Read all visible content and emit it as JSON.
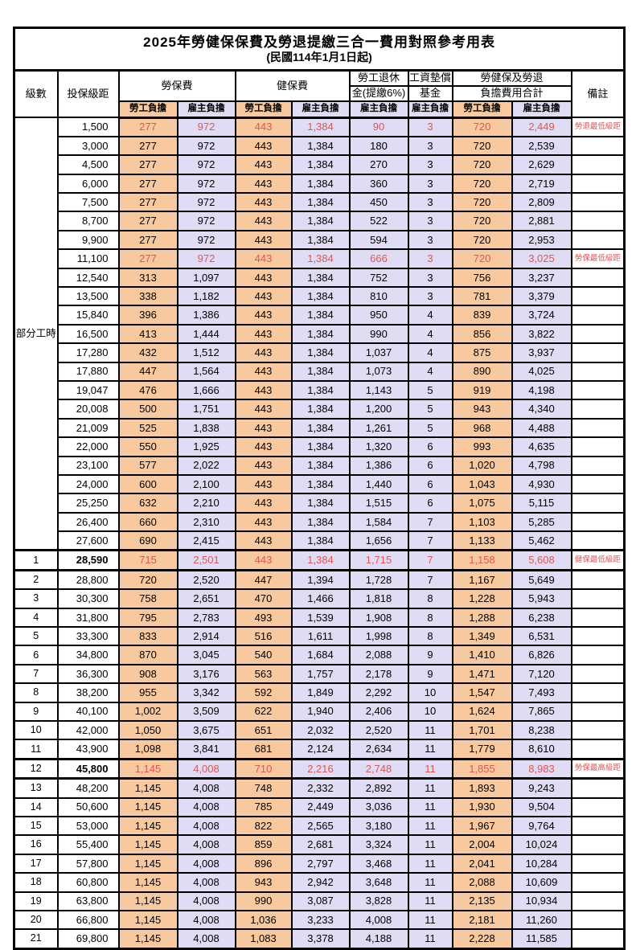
{
  "title": "2025年勞健保保費及勞退提繳三合一費用對照參考用表",
  "subtitle": "(民國114年1月1日起)",
  "colors": {
    "employee_bg": "#F8C99E",
    "employer_bg": "#DFDCF3",
    "highlight_red": "#E05555",
    "border": "#000000"
  },
  "header": {
    "level": "級數",
    "bracket": "投保級距",
    "labor_insurance": "勞保費",
    "health_insurance": "健保費",
    "pension_line1": "勞工退休",
    "pension_line2": "金(提繳6%)",
    "wage_fund_line1": "工資墊償",
    "wage_fund_line2": "基金",
    "total_line1": "勞健保及勞退",
    "total_line2": "負擔費用合計",
    "remark": "備註",
    "employee": "勞工負擔",
    "employer": "雇主負擔"
  },
  "part_time": {
    "label": "部分工時",
    "row_count": 23
  },
  "rows": [
    {
      "lv": "",
      "bracket": "1,500",
      "li_e": "277",
      "li_r": "972",
      "hi_e": "443",
      "hi_r": "1,384",
      "pen": "90",
      "wf": "3",
      "tot_e": "720",
      "tot_r": "2,449",
      "note": "勞退最低級距",
      "red": true,
      "heavy": false,
      "bold": false
    },
    {
      "lv": "",
      "bracket": "3,000",
      "li_e": "277",
      "li_r": "972",
      "hi_e": "443",
      "hi_r": "1,384",
      "pen": "180",
      "wf": "3",
      "tot_e": "720",
      "tot_r": "2,539",
      "note": "",
      "red": false,
      "heavy": false,
      "bold": false
    },
    {
      "lv": "",
      "bracket": "4,500",
      "li_e": "277",
      "li_r": "972",
      "hi_e": "443",
      "hi_r": "1,384",
      "pen": "270",
      "wf": "3",
      "tot_e": "720",
      "tot_r": "2,629",
      "note": "",
      "red": false,
      "heavy": false,
      "bold": false
    },
    {
      "lv": "",
      "bracket": "6,000",
      "li_e": "277",
      "li_r": "972",
      "hi_e": "443",
      "hi_r": "1,384",
      "pen": "360",
      "wf": "3",
      "tot_e": "720",
      "tot_r": "2,719",
      "note": "",
      "red": false,
      "heavy": false,
      "bold": false
    },
    {
      "lv": "",
      "bracket": "7,500",
      "li_e": "277",
      "li_r": "972",
      "hi_e": "443",
      "hi_r": "1,384",
      "pen": "450",
      "wf": "3",
      "tot_e": "720",
      "tot_r": "2,809",
      "note": "",
      "red": false,
      "heavy": false,
      "bold": false
    },
    {
      "lv": "",
      "bracket": "8,700",
      "li_e": "277",
      "li_r": "972",
      "hi_e": "443",
      "hi_r": "1,384",
      "pen": "522",
      "wf": "3",
      "tot_e": "720",
      "tot_r": "2,881",
      "note": "",
      "red": false,
      "heavy": false,
      "bold": false
    },
    {
      "lv": "",
      "bracket": "9,900",
      "li_e": "277",
      "li_r": "972",
      "hi_e": "443",
      "hi_r": "1,384",
      "pen": "594",
      "wf": "3",
      "tot_e": "720",
      "tot_r": "2,953",
      "note": "",
      "red": false,
      "heavy": false,
      "bold": false
    },
    {
      "lv": "",
      "bracket": "11,100",
      "li_e": "277",
      "li_r": "972",
      "hi_e": "443",
      "hi_r": "1,384",
      "pen": "666",
      "wf": "3",
      "tot_e": "720",
      "tot_r": "3,025",
      "note": "勞保最低級距",
      "red": true,
      "heavy": false,
      "bold": false
    },
    {
      "lv": "",
      "bracket": "12,540",
      "li_e": "313",
      "li_r": "1,097",
      "hi_e": "443",
      "hi_r": "1,384",
      "pen": "752",
      "wf": "3",
      "tot_e": "756",
      "tot_r": "3,237",
      "note": "",
      "red": false,
      "heavy": false,
      "bold": false
    },
    {
      "lv": "",
      "bracket": "13,500",
      "li_e": "338",
      "li_r": "1,182",
      "hi_e": "443",
      "hi_r": "1,384",
      "pen": "810",
      "wf": "3",
      "tot_e": "781",
      "tot_r": "3,379",
      "note": "",
      "red": false,
      "heavy": false,
      "bold": false
    },
    {
      "lv": "",
      "bracket": "15,840",
      "li_e": "396",
      "li_r": "1,386",
      "hi_e": "443",
      "hi_r": "1,384",
      "pen": "950",
      "wf": "4",
      "tot_e": "839",
      "tot_r": "3,724",
      "note": "",
      "red": false,
      "heavy": false,
      "bold": false
    },
    {
      "lv": "",
      "bracket": "16,500",
      "li_e": "413",
      "li_r": "1,444",
      "hi_e": "443",
      "hi_r": "1,384",
      "pen": "990",
      "wf": "4",
      "tot_e": "856",
      "tot_r": "3,822",
      "note": "",
      "red": false,
      "heavy": false,
      "bold": false
    },
    {
      "lv": "",
      "bracket": "17,280",
      "li_e": "432",
      "li_r": "1,512",
      "hi_e": "443",
      "hi_r": "1,384",
      "pen": "1,037",
      "wf": "4",
      "tot_e": "875",
      "tot_r": "3,937",
      "note": "",
      "red": false,
      "heavy": false,
      "bold": false
    },
    {
      "lv": "",
      "bracket": "17,880",
      "li_e": "447",
      "li_r": "1,564",
      "hi_e": "443",
      "hi_r": "1,384",
      "pen": "1,073",
      "wf": "4",
      "tot_e": "890",
      "tot_r": "4,025",
      "note": "",
      "red": false,
      "heavy": false,
      "bold": false
    },
    {
      "lv": "",
      "bracket": "19,047",
      "li_e": "476",
      "li_r": "1,666",
      "hi_e": "443",
      "hi_r": "1,384",
      "pen": "1,143",
      "wf": "5",
      "tot_e": "919",
      "tot_r": "4,198",
      "note": "",
      "red": false,
      "heavy": false,
      "bold": false
    },
    {
      "lv": "",
      "bracket": "20,008",
      "li_e": "500",
      "li_r": "1,751",
      "hi_e": "443",
      "hi_r": "1,384",
      "pen": "1,200",
      "wf": "5",
      "tot_e": "943",
      "tot_r": "4,340",
      "note": "",
      "red": false,
      "heavy": false,
      "bold": false
    },
    {
      "lv": "",
      "bracket": "21,009",
      "li_e": "525",
      "li_r": "1,838",
      "hi_e": "443",
      "hi_r": "1,384",
      "pen": "1,261",
      "wf": "5",
      "tot_e": "968",
      "tot_r": "4,488",
      "note": "",
      "red": false,
      "heavy": false,
      "bold": false
    },
    {
      "lv": "",
      "bracket": "22,000",
      "li_e": "550",
      "li_r": "1,925",
      "hi_e": "443",
      "hi_r": "1,384",
      "pen": "1,320",
      "wf": "6",
      "tot_e": "993",
      "tot_r": "4,635",
      "note": "",
      "red": false,
      "heavy": false,
      "bold": false
    },
    {
      "lv": "",
      "bracket": "23,100",
      "li_e": "577",
      "li_r": "2,022",
      "hi_e": "443",
      "hi_r": "1,384",
      "pen": "1,386",
      "wf": "6",
      "tot_e": "1,020",
      "tot_r": "4,798",
      "note": "",
      "red": false,
      "heavy": false,
      "bold": false
    },
    {
      "lv": "",
      "bracket": "24,000",
      "li_e": "600",
      "li_r": "2,100",
      "hi_e": "443",
      "hi_r": "1,384",
      "pen": "1,440",
      "wf": "6",
      "tot_e": "1,043",
      "tot_r": "4,930",
      "note": "",
      "red": false,
      "heavy": false,
      "bold": false
    },
    {
      "lv": "",
      "bracket": "25,250",
      "li_e": "632",
      "li_r": "2,210",
      "hi_e": "443",
      "hi_r": "1,384",
      "pen": "1,515",
      "wf": "6",
      "tot_e": "1,075",
      "tot_r": "5,115",
      "note": "",
      "red": false,
      "heavy": false,
      "bold": false
    },
    {
      "lv": "",
      "bracket": "26,400",
      "li_e": "660",
      "li_r": "2,310",
      "hi_e": "443",
      "hi_r": "1,384",
      "pen": "1,584",
      "wf": "7",
      "tot_e": "1,103",
      "tot_r": "5,285",
      "note": "",
      "red": false,
      "heavy": false,
      "bold": false
    },
    {
      "lv": "",
      "bracket": "27,600",
      "li_e": "690",
      "li_r": "2,415",
      "hi_e": "443",
      "hi_r": "1,384",
      "pen": "1,656",
      "wf": "7",
      "tot_e": "1,133",
      "tot_r": "5,462",
      "note": "",
      "red": false,
      "heavy": false,
      "bold": false
    },
    {
      "lv": "1",
      "bracket": "28,590",
      "li_e": "715",
      "li_r": "2,501",
      "hi_e": "443",
      "hi_r": "1,384",
      "pen": "1,715",
      "wf": "7",
      "tot_e": "1,158",
      "tot_r": "5,608",
      "note": "健保最低級距",
      "red": true,
      "heavy": true,
      "bold": true
    },
    {
      "lv": "2",
      "bracket": "28,800",
      "li_e": "720",
      "li_r": "2,520",
      "hi_e": "447",
      "hi_r": "1,394",
      "pen": "1,728",
      "wf": "7",
      "tot_e": "1,167",
      "tot_r": "5,649",
      "note": "",
      "red": false,
      "heavy": false,
      "bold": false
    },
    {
      "lv": "3",
      "bracket": "30,300",
      "li_e": "758",
      "li_r": "2,651",
      "hi_e": "470",
      "hi_r": "1,466",
      "pen": "1,818",
      "wf": "8",
      "tot_e": "1,228",
      "tot_r": "5,943",
      "note": "",
      "red": false,
      "heavy": false,
      "bold": false
    },
    {
      "lv": "4",
      "bracket": "31,800",
      "li_e": "795",
      "li_r": "2,783",
      "hi_e": "493",
      "hi_r": "1,539",
      "pen": "1,908",
      "wf": "8",
      "tot_e": "1,288",
      "tot_r": "6,238",
      "note": "",
      "red": false,
      "heavy": false,
      "bold": false
    },
    {
      "lv": "5",
      "bracket": "33,300",
      "li_e": "833",
      "li_r": "2,914",
      "hi_e": "516",
      "hi_r": "1,611",
      "pen": "1,998",
      "wf": "8",
      "tot_e": "1,349",
      "tot_r": "6,531",
      "note": "",
      "red": false,
      "heavy": false,
      "bold": false
    },
    {
      "lv": "6",
      "bracket": "34,800",
      "li_e": "870",
      "li_r": "3,045",
      "hi_e": "540",
      "hi_r": "1,684",
      "pen": "2,088",
      "wf": "9",
      "tot_e": "1,410",
      "tot_r": "6,826",
      "note": "",
      "red": false,
      "heavy": false,
      "bold": false
    },
    {
      "lv": "7",
      "bracket": "36,300",
      "li_e": "908",
      "li_r": "3,176",
      "hi_e": "563",
      "hi_r": "1,757",
      "pen": "2,178",
      "wf": "9",
      "tot_e": "1,471",
      "tot_r": "7,120",
      "note": "",
      "red": false,
      "heavy": false,
      "bold": false
    },
    {
      "lv": "8",
      "bracket": "38,200",
      "li_e": "955",
      "li_r": "3,342",
      "hi_e": "592",
      "hi_r": "1,849",
      "pen": "2,292",
      "wf": "10",
      "tot_e": "1,547",
      "tot_r": "7,493",
      "note": "",
      "red": false,
      "heavy": false,
      "bold": false
    },
    {
      "lv": "9",
      "bracket": "40,100",
      "li_e": "1,002",
      "li_r": "3,509",
      "hi_e": "622",
      "hi_r": "1,940",
      "pen": "2,406",
      "wf": "10",
      "tot_e": "1,624",
      "tot_r": "7,865",
      "note": "",
      "red": false,
      "heavy": false,
      "bold": false
    },
    {
      "lv": "10",
      "bracket": "42,000",
      "li_e": "1,050",
      "li_r": "3,675",
      "hi_e": "651",
      "hi_r": "2,032",
      "pen": "2,520",
      "wf": "11",
      "tot_e": "1,701",
      "tot_r": "8,238",
      "note": "",
      "red": false,
      "heavy": false,
      "bold": false
    },
    {
      "lv": "11",
      "bracket": "43,900",
      "li_e": "1,098",
      "li_r": "3,841",
      "hi_e": "681",
      "hi_r": "2,124",
      "pen": "2,634",
      "wf": "11",
      "tot_e": "1,779",
      "tot_r": "8,610",
      "note": "",
      "red": false,
      "heavy": false,
      "bold": false
    },
    {
      "lv": "12",
      "bracket": "45,800",
      "li_e": "1,145",
      "li_r": "4,008",
      "hi_e": "710",
      "hi_r": "2,216",
      "pen": "2,748",
      "wf": "11",
      "tot_e": "1,855",
      "tot_r": "8,983",
      "note": "勞保最高級距",
      "red": true,
      "heavy": true,
      "bold": true
    },
    {
      "lv": "13",
      "bracket": "48,200",
      "li_e": "1,145",
      "li_r": "4,008",
      "hi_e": "748",
      "hi_r": "2,332",
      "pen": "2,892",
      "wf": "11",
      "tot_e": "1,893",
      "tot_r": "9,243",
      "note": "",
      "red": false,
      "heavy": false,
      "bold": false
    },
    {
      "lv": "14",
      "bracket": "50,600",
      "li_e": "1,145",
      "li_r": "4,008",
      "hi_e": "785",
      "hi_r": "2,449",
      "pen": "3,036",
      "wf": "11",
      "tot_e": "1,930",
      "tot_r": "9,504",
      "note": "",
      "red": false,
      "heavy": false,
      "bold": false
    },
    {
      "lv": "15",
      "bracket": "53,000",
      "li_e": "1,145",
      "li_r": "4,008",
      "hi_e": "822",
      "hi_r": "2,565",
      "pen": "3,180",
      "wf": "11",
      "tot_e": "1,967",
      "tot_r": "9,764",
      "note": "",
      "red": false,
      "heavy": false,
      "bold": false
    },
    {
      "lv": "16",
      "bracket": "55,400",
      "li_e": "1,145",
      "li_r": "4,008",
      "hi_e": "859",
      "hi_r": "2,681",
      "pen": "3,324",
      "wf": "11",
      "tot_e": "2,004",
      "tot_r": "10,024",
      "note": "",
      "red": false,
      "heavy": false,
      "bold": false
    },
    {
      "lv": "17",
      "bracket": "57,800",
      "li_e": "1,145",
      "li_r": "4,008",
      "hi_e": "896",
      "hi_r": "2,797",
      "pen": "3,468",
      "wf": "11",
      "tot_e": "2,041",
      "tot_r": "10,284",
      "note": "",
      "red": false,
      "heavy": false,
      "bold": false
    },
    {
      "lv": "18",
      "bracket": "60,800",
      "li_e": "1,145",
      "li_r": "4,008",
      "hi_e": "943",
      "hi_r": "2,942",
      "pen": "3,648",
      "wf": "11",
      "tot_e": "2,088",
      "tot_r": "10,609",
      "note": "",
      "red": false,
      "heavy": false,
      "bold": false
    },
    {
      "lv": "19",
      "bracket": "63,800",
      "li_e": "1,145",
      "li_r": "4,008",
      "hi_e": "990",
      "hi_r": "3,087",
      "pen": "3,828",
      "wf": "11",
      "tot_e": "2,135",
      "tot_r": "10,934",
      "note": "",
      "red": false,
      "heavy": false,
      "bold": false
    },
    {
      "lv": "20",
      "bracket": "66,800",
      "li_e": "1,145",
      "li_r": "4,008",
      "hi_e": "1,036",
      "hi_r": "3,233",
      "pen": "4,008",
      "wf": "11",
      "tot_e": "2,181",
      "tot_r": "11,260",
      "note": "",
      "red": false,
      "heavy": false,
      "bold": false
    },
    {
      "lv": "21",
      "bracket": "69,800",
      "li_e": "1,145",
      "li_r": "4,008",
      "hi_e": "1,083",
      "hi_r": "3,378",
      "pen": "4,188",
      "wf": "11",
      "tot_e": "2,228",
      "tot_r": "11,585",
      "note": "",
      "red": false,
      "heavy": false,
      "bold": false
    }
  ]
}
